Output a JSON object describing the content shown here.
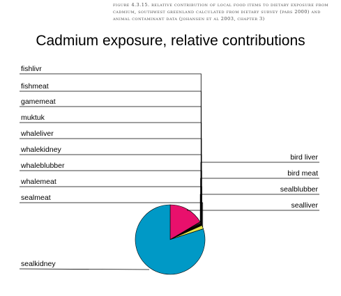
{
  "caption": {
    "line1": "Figure 4.3.15. Relative contribution of local food items to dietary exposure from",
    "line2": "cadmium, Southwest Greenland calculated from dietary survey (Pars 2000) and",
    "line3": "animal contaminant data (Johansen et al 2003, chapter 3)"
  },
  "chart_data": {
    "type": "pie",
    "title": "Cadmium exposure, relative contributions",
    "legend": "none",
    "labels": [
      "sealliver",
      "sealblubber",
      "bird meat",
      "bird liver",
      "fishlivr",
      "fishmeat",
      "gamemeat",
      "muktuk",
      "whaleliver",
      "whalekidney",
      "whaleblubber",
      "whalemeat",
      "sealmeat",
      "sealkidney"
    ],
    "values": [
      16.5,
      0.2,
      0.3,
      0.3,
      0.1,
      0.1,
      0.1,
      0.1,
      0.1,
      0.2,
      0.1,
      0.2,
      1.7,
      80.0
    ],
    "colors": [
      "#e8106c",
      "#ffffff",
      "#ffffff",
      "#cc2a10",
      "#ffffff",
      "#ffffff",
      "#ffffff",
      "#ffffff",
      "#ffffff",
      "#ffffff",
      "#ffffff",
      "#ffffff",
      "#e4e64a",
      "#0099c6"
    ]
  }
}
